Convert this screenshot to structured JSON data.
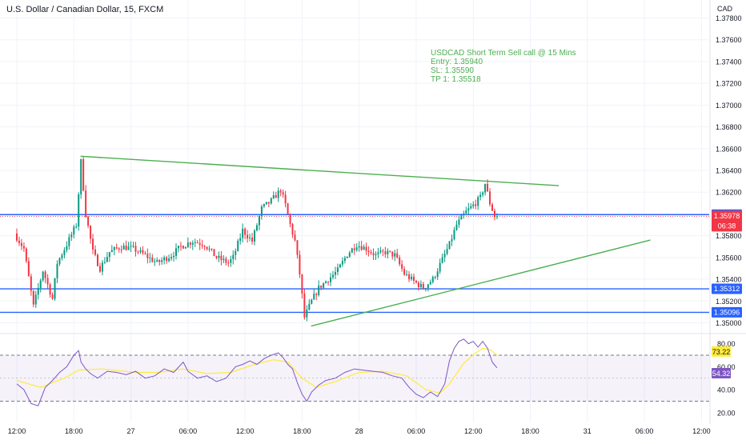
{
  "chart_data": {
    "type": "candlestick",
    "title": "U.S. Dollar / Canadian Dollar, 15, FXCM",
    "currency": "CAD",
    "price_axis": {
      "range": [
        1.3493,
        1.3787
      ],
      "ticks": [
        "1.37800",
        "1.37600",
        "1.37400",
        "1.37200",
        "1.37000",
        "1.36800",
        "1.36600",
        "1.36400",
        "1.36200",
        "1.35800",
        "1.35600",
        "1.35400",
        "1.35200",
        "1.35000"
      ],
      "badges": [
        {
          "label": "1.35994",
          "value": 1.35994,
          "color": "#2962ff"
        },
        {
          "label": "1.35978",
          "value": 1.35978,
          "color": "#f23645",
          "sub": "06:38"
        },
        {
          "label": "1.35312",
          "value": 1.35312,
          "color": "#2962ff"
        },
        {
          "label": "1.35096",
          "value": 1.35096,
          "color": "#2962ff"
        }
      ]
    },
    "time_axis": {
      "labels": [
        {
          "label": "12:00",
          "t": 0
        },
        {
          "label": "18:00",
          "t": 24
        },
        {
          "label": "27",
          "t": 48
        },
        {
          "label": "06:00",
          "t": 72
        },
        {
          "label": "12:00",
          "t": 96
        },
        {
          "label": "18:00",
          "t": 120
        },
        {
          "label": "28",
          "t": 144
        },
        {
          "label": "06:00",
          "t": 168
        },
        {
          "label": "12:00",
          "t": 192
        },
        {
          "label": "18:00",
          "t": 216
        },
        {
          "label": "31",
          "t": 240
        },
        {
          "label": "06:00",
          "t": 264
        },
        {
          "label": "12:00",
          "t": 288
        }
      ]
    },
    "horizontal_levels": [
      {
        "value": 1.35994,
        "style": "solid",
        "color": "#2962ff"
      },
      {
        "value": 1.35978,
        "style": "dotted",
        "color": "#f23645"
      },
      {
        "value": 1.35312,
        "style": "solid",
        "color": "#2962ff"
      },
      {
        "value": 1.35096,
        "style": "solid",
        "color": "#2962ff"
      }
    ],
    "trendlines": [
      {
        "t1": 26.8,
        "p1": 1.3653,
        "t2": 228,
        "p2": 1.3626,
        "color": "#4caf50"
      },
      {
        "t1": 123.8,
        "p1": 1.3497,
        "t2": 266.5,
        "p2": 1.3576,
        "color": "#4caf50"
      }
    ],
    "annotation": [
      "USDCAD Short Term Sell call @ 15 Mins",
      "Entry: 1.35940",
      "SL: 1.35590",
      "TP 1: 1.35518"
    ],
    "candle_path": [
      [
        0,
        1.3582
      ],
      [
        4,
        1.3568
      ],
      [
        8,
        1.3515
      ],
      [
        12,
        1.3548
      ],
      [
        16,
        1.3522
      ],
      [
        18,
        1.3555
      ],
      [
        22,
        1.3572
      ],
      [
        26,
        1.359
      ],
      [
        28,
        1.3648
      ],
      [
        30,
        1.36
      ],
      [
        33,
        1.3565
      ],
      [
        36,
        1.355
      ],
      [
        40,
        1.3565
      ],
      [
        45,
        1.357
      ],
      [
        50,
        1.3568
      ],
      [
        55,
        1.3562
      ],
      [
        60,
        1.3555
      ],
      [
        66,
        1.3562
      ],
      [
        70,
        1.357
      ],
      [
        75,
        1.3575
      ],
      [
        80,
        1.3572
      ],
      [
        85,
        1.356
      ],
      [
        90,
        1.3555
      ],
      [
        92,
        1.356
      ],
      [
        96,
        1.3585
      ],
      [
        100,
        1.3575
      ],
      [
        104,
        1.3605
      ],
      [
        108,
        1.3612
      ],
      [
        112,
        1.3622
      ],
      [
        114,
        1.3608
      ],
      [
        116,
        1.359
      ],
      [
        118,
        1.3575
      ],
      [
        120,
        1.3545
      ],
      [
        122,
        1.3505
      ],
      [
        125,
        1.352
      ],
      [
        128,
        1.3532
      ],
      [
        132,
        1.354
      ],
      [
        136,
        1.3548
      ],
      [
        140,
        1.3563
      ],
      [
        144,
        1.3572
      ],
      [
        148,
        1.3568
      ],
      [
        152,
        1.3562
      ],
      [
        156,
        1.3565
      ],
      [
        160,
        1.3562
      ],
      [
        164,
        1.3545
      ],
      [
        168,
        1.3538
      ],
      [
        172,
        1.3532
      ],
      [
        176,
        1.354
      ],
      [
        180,
        1.3558
      ],
      [
        183,
        1.3572
      ],
      [
        186,
        1.359
      ],
      [
        190,
        1.3602
      ],
      [
        193,
        1.3608
      ],
      [
        196,
        1.3615
      ],
      [
        198,
        1.3628
      ],
      [
        200,
        1.361
      ],
      [
        202,
        1.3598
      ]
    ],
    "rsi": {
      "levels": [
        80,
        60,
        40,
        20
      ],
      "bands": [
        70,
        30
      ],
      "range": [
        15,
        86
      ],
      "rsi_value": "73.22",
      "ma_value": "54.32",
      "rsi_color": "#7e57c2",
      "ma_color": "#ffeb3b",
      "rsi_points": [
        [
          0,
          45
        ],
        [
          3,
          40
        ],
        [
          6,
          28
        ],
        [
          9,
          26
        ],
        [
          12,
          42
        ],
        [
          15,
          48
        ],
        [
          18,
          55
        ],
        [
          21,
          60
        ],
        [
          24,
          70
        ],
        [
          26,
          74
        ],
        [
          27,
          64
        ],
        [
          29,
          58
        ],
        [
          31,
          54
        ],
        [
          34,
          50
        ],
        [
          38,
          56
        ],
        [
          42,
          55
        ],
        [
          46,
          53
        ],
        [
          50,
          56
        ],
        [
          54,
          50
        ],
        [
          58,
          52
        ],
        [
          62,
          58
        ],
        [
          66,
          55
        ],
        [
          70,
          64
        ],
        [
          72,
          56
        ],
        [
          76,
          50
        ],
        [
          80,
          52
        ],
        [
          84,
          47
        ],
        [
          88,
          50
        ],
        [
          92,
          60
        ],
        [
          95,
          62
        ],
        [
          98,
          65
        ],
        [
          101,
          62
        ],
        [
          104,
          67
        ],
        [
          107,
          70
        ],
        [
          110,
          72
        ],
        [
          112,
          68
        ],
        [
          114,
          62
        ],
        [
          116,
          58
        ],
        [
          118,
          46
        ],
        [
          120,
          36
        ],
        [
          122,
          30
        ],
        [
          124,
          38
        ],
        [
          127,
          44
        ],
        [
          130,
          48
        ],
        [
          134,
          50
        ],
        [
          138,
          55
        ],
        [
          142,
          58
        ],
        [
          146,
          57
        ],
        [
          150,
          56
        ],
        [
          154,
          55
        ],
        [
          158,
          52
        ],
        [
          162,
          50
        ],
        [
          165,
          42
        ],
        [
          168,
          36
        ],
        [
          171,
          33
        ],
        [
          174,
          38
        ],
        [
          177,
          34
        ],
        [
          180,
          45
        ],
        [
          182,
          65
        ],
        [
          184,
          76
        ],
        [
          186,
          82
        ],
        [
          188,
          84
        ],
        [
          190,
          80
        ],
        [
          192,
          82
        ],
        [
          194,
          77
        ],
        [
          196,
          82
        ],
        [
          198,
          76
        ],
        [
          200,
          64
        ],
        [
          202,
          59
        ]
      ],
      "ma_points": [
        [
          0,
          48
        ],
        [
          10,
          42
        ],
        [
          20,
          50
        ],
        [
          26,
          57
        ],
        [
          36,
          58
        ],
        [
          50,
          55
        ],
        [
          60,
          55
        ],
        [
          70,
          58
        ],
        [
          80,
          54
        ],
        [
          90,
          55
        ],
        [
          100,
          62
        ],
        [
          108,
          66
        ],
        [
          114,
          64
        ],
        [
          120,
          50
        ],
        [
          126,
          42
        ],
        [
          134,
          47
        ],
        [
          144,
          55
        ],
        [
          154,
          56
        ],
        [
          164,
          52
        ],
        [
          172,
          40
        ],
        [
          178,
          37
        ],
        [
          182,
          45
        ],
        [
          188,
          63
        ],
        [
          193,
          72
        ],
        [
          196,
          76
        ],
        [
          199,
          75
        ],
        [
          202,
          70
        ]
      ]
    }
  }
}
